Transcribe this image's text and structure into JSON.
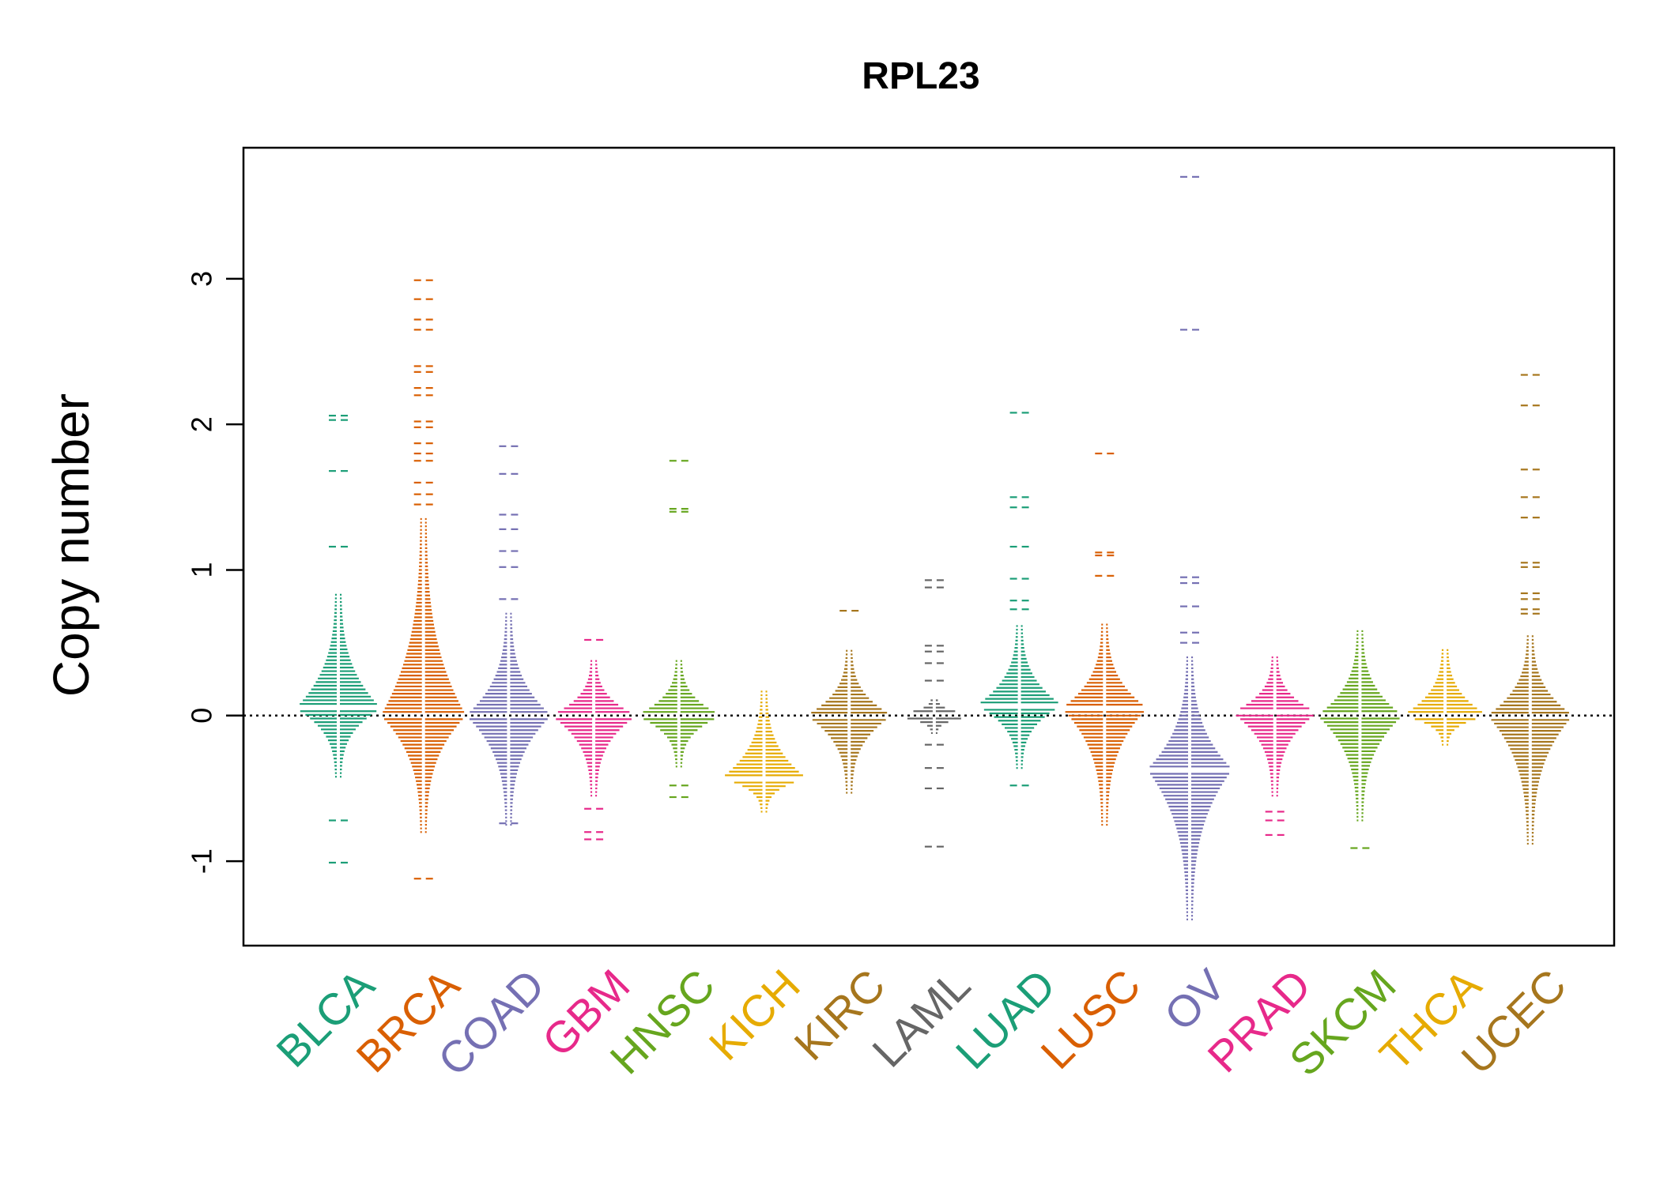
{
  "chart_data": {
    "type": "beeswarm",
    "title": "RPL23",
    "xlabel": "",
    "ylabel": "Copy number",
    "ylim": [
      -1.58,
      3.9
    ],
    "yticks": [
      -1,
      0,
      1,
      2,
      3
    ],
    "ytick_labels": [
      "-1",
      "0",
      "1",
      "2",
      "3"
    ],
    "reference_line": 0,
    "categories": [
      "BLCA",
      "BRCA",
      "COAD",
      "GBM",
      "HNSC",
      "KICH",
      "KIRC",
      "LAML",
      "LUAD",
      "LUSC",
      "OV",
      "PRAD",
      "SKCM",
      "THCA",
      "UCEC"
    ],
    "colors": [
      "#1B9E77",
      "#D95F02",
      "#7570B3",
      "#E7298A",
      "#66A61E",
      "#E6AB02",
      "#A6761D",
      "#666666",
      "#1B9E77",
      "#D95F02",
      "#7570B3",
      "#E7298A",
      "#66A61E",
      "#E6AB02",
      "#A6761D"
    ],
    "series": [
      {
        "name": "BLCA",
        "center": 0.05,
        "core": [
          -0.42,
          0.85
        ],
        "outliers": [
          2.06,
          2.03,
          1.68,
          1.16,
          -0.72,
          -1.01
        ]
      },
      {
        "name": "BRCA",
        "center": 0.0,
        "core": [
          -0.8,
          1.35
        ],
        "outliers": [
          2.99,
          2.86,
          2.72,
          2.65,
          2.4,
          2.36,
          2.25,
          2.2,
          2.02,
          1.98,
          1.87,
          1.8,
          1.75,
          1.6,
          1.52,
          1.45,
          -1.12
        ]
      },
      {
        "name": "COAD",
        "center": 0.0,
        "core": [
          -0.75,
          0.7
        ],
        "outliers": [
          1.85,
          1.66,
          1.38,
          1.28,
          1.13,
          1.02,
          0.8,
          -0.74
        ]
      },
      {
        "name": "GBM",
        "center": 0.0,
        "core": [
          -0.55,
          0.38
        ],
        "outliers": [
          0.52,
          -0.64,
          -0.8,
          -0.85
        ]
      },
      {
        "name": "HNSC",
        "center": 0.0,
        "core": [
          -0.35,
          0.38
        ],
        "outliers": [
          1.75,
          1.42,
          1.4,
          -0.48,
          -0.56
        ]
      },
      {
        "name": "KICH",
        "center": -0.43,
        "core": [
          -0.66,
          0.17
        ],
        "outliers": []
      },
      {
        "name": "KIRC",
        "center": 0.0,
        "core": [
          -0.53,
          0.45
        ],
        "outliers": [
          0.72
        ]
      },
      {
        "name": "LAML",
        "center": 0.0,
        "core": [
          -0.12,
          0.12
        ],
        "outliers": [
          0.93,
          0.88,
          0.48,
          0.44,
          0.36,
          0.24,
          -0.2,
          -0.36,
          -0.5,
          -0.9
        ]
      },
      {
        "name": "LUAD",
        "center": 0.07,
        "core": [
          -0.36,
          0.62
        ],
        "outliers": [
          2.08,
          1.5,
          1.43,
          1.16,
          0.94,
          0.79,
          0.73,
          -0.48
        ]
      },
      {
        "name": "LUSC",
        "center": 0.05,
        "core": [
          -0.75,
          0.63
        ],
        "outliers": [
          1.8,
          1.12,
          1.1,
          0.96
        ]
      },
      {
        "name": "OV",
        "center": -0.37,
        "core": [
          -1.4,
          0.42
        ],
        "outliers": [
          3.7,
          2.65,
          0.95,
          0.91,
          0.75,
          0.57,
          0.5
        ]
      },
      {
        "name": "PRAD",
        "center": 0.02,
        "core": [
          -0.55,
          0.4
        ],
        "outliers": [
          -0.66,
          -0.72,
          -0.82
        ]
      },
      {
        "name": "SKCM",
        "center": 0.0,
        "core": [
          -0.72,
          0.58
        ],
        "outliers": [
          -0.91
        ]
      },
      {
        "name": "THCA",
        "center": 0.0,
        "core": [
          -0.2,
          0.47
        ],
        "outliers": []
      },
      {
        "name": "UCEC",
        "center": 0.0,
        "core": [
          -0.88,
          0.56
        ],
        "outliers": [
          2.34,
          2.13,
          1.69,
          1.5,
          1.36,
          1.05,
          1.02,
          0.84,
          0.8,
          0.73,
          0.7
        ]
      }
    ]
  }
}
